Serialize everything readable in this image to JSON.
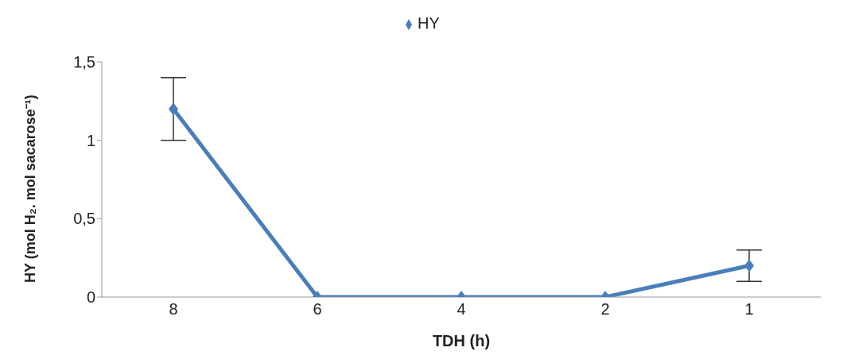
{
  "chart_data": {
    "type": "line",
    "xlabel": "TDH (h)",
    "ylabel": "HY (mol H₂. mol sacarose⁻¹)",
    "categories": [
      "8",
      "6",
      "4",
      "2",
      "1"
    ],
    "series": [
      {
        "name": "HY",
        "color": "#4a7ebb",
        "values": [
          1.2,
          0,
          0,
          0,
          0.2
        ],
        "errors": [
          0.2,
          null,
          null,
          null,
          0.1
        ]
      }
    ],
    "ylim": [
      0,
      1.5
    ],
    "yticks": [
      0,
      {
        "value": 0.5,
        "label": "0,5"
      },
      1,
      {
        "value": 1.5,
        "label": "1,5"
      }
    ],
    "grid": false,
    "legend": "top",
    "marker": "diamond",
    "line_style": "solid"
  }
}
